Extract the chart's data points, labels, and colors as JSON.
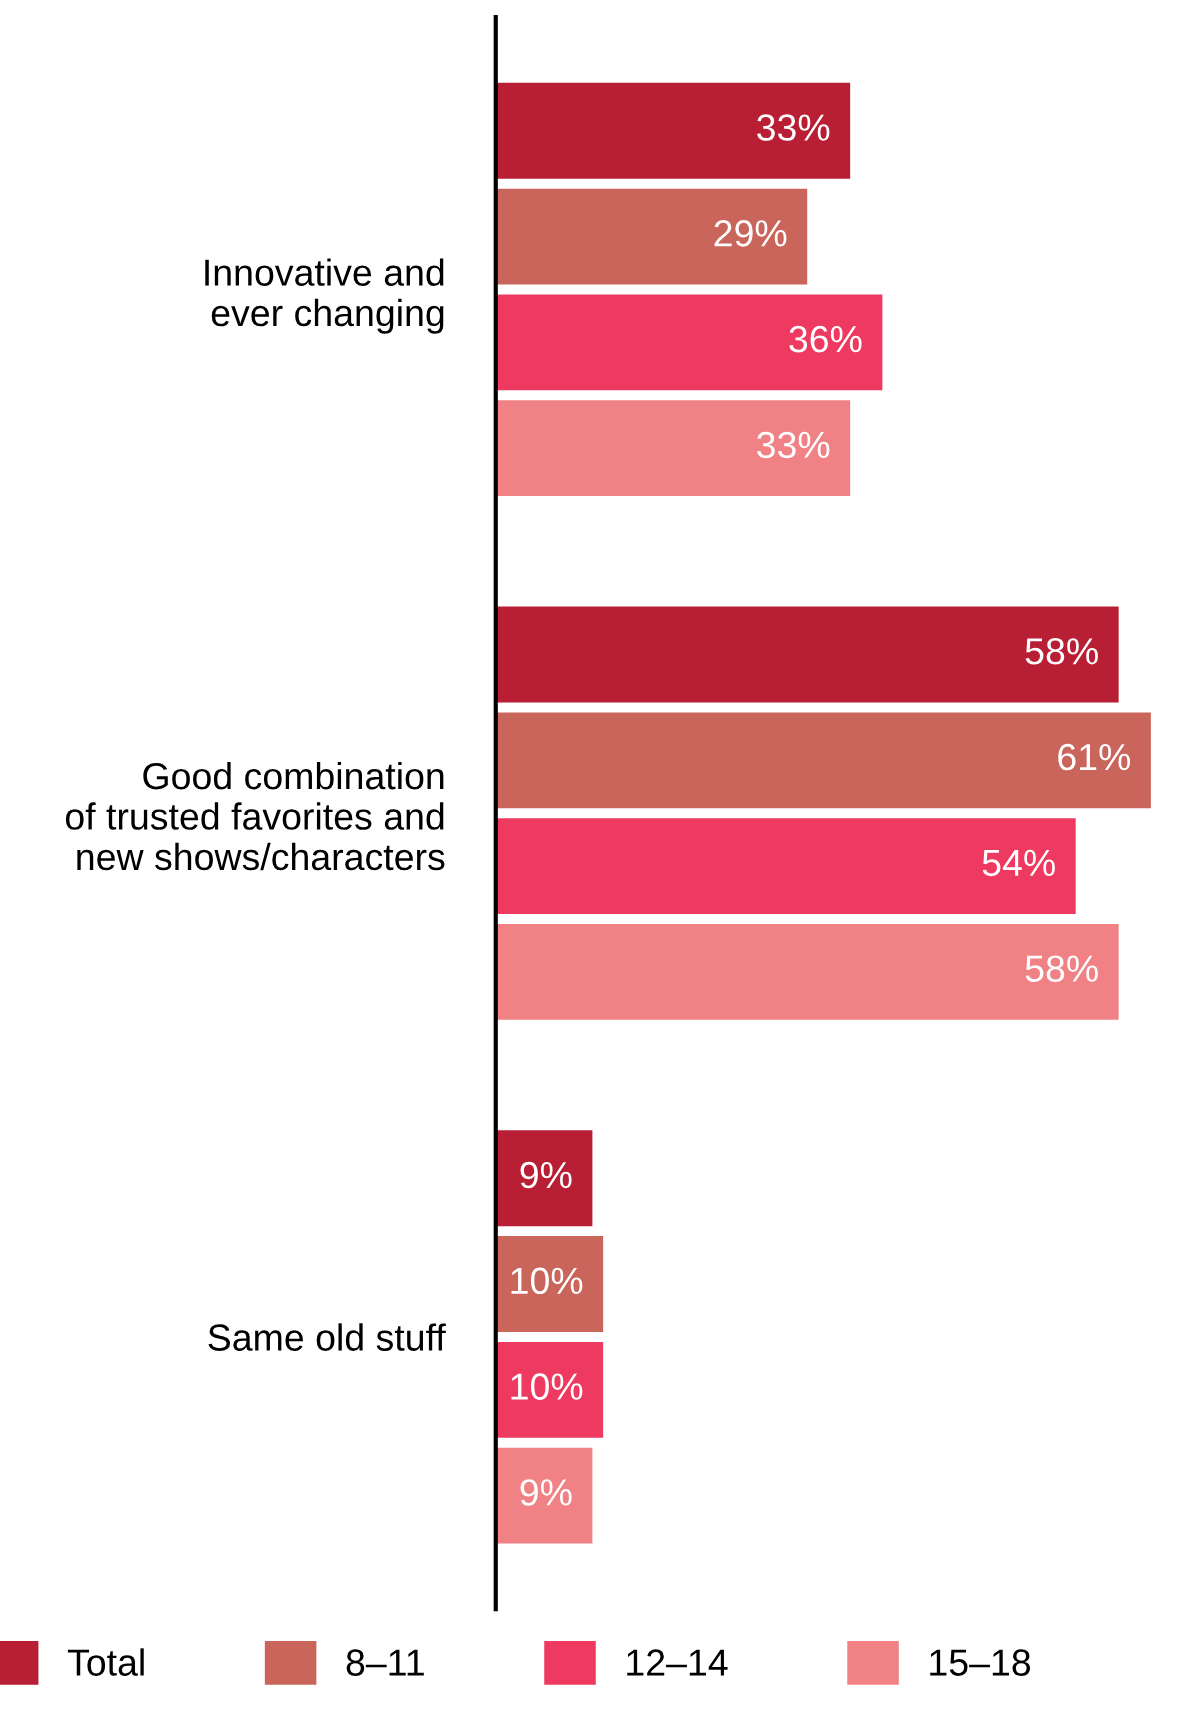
{
  "chart_data": {
    "type": "bar",
    "orientation": "horizontal",
    "categories": [
      "Innovative and\never changing",
      "Good combination\nof trusted favorites and\nnew shows/characters",
      "Same old stuff"
    ],
    "series": [
      {
        "name": "Total",
        "color": "#b81f35",
        "values": [
          33,
          58,
          9
        ],
        "value_labels": [
          "33%",
          "58%",
          "9%"
        ]
      },
      {
        "name": "8–11",
        "color": "#c9655b",
        "values": [
          29,
          61,
          10
        ],
        "value_labels": [
          "29%",
          "61%",
          "10%"
        ]
      },
      {
        "name": "12–14",
        "color": "#ee3a60",
        "values": [
          36,
          54,
          10
        ],
        "value_labels": [
          "36%",
          "54%",
          "10%"
        ]
      },
      {
        "name": "15–18",
        "color": "#f08286",
        "values": [
          33,
          58,
          9
        ],
        "value_labels": [
          "33%",
          "58%",
          "9%"
        ]
      }
    ],
    "legend": "bottom"
  }
}
